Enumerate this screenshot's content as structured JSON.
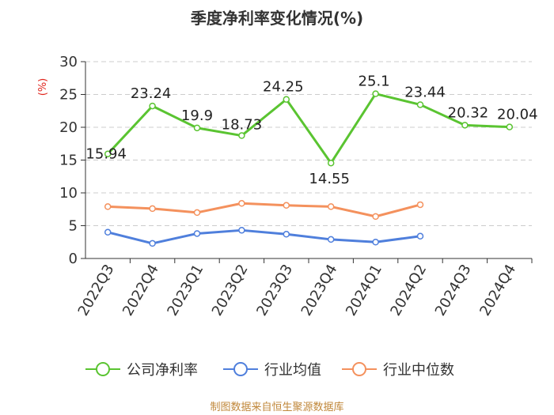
{
  "chart_data": {
    "type": "line",
    "title": "季度净利率变化情况(%)",
    "ylabel": "(%)",
    "ylim": [
      0,
      30
    ],
    "yticks": [
      0,
      5,
      10,
      15,
      20,
      25,
      30
    ],
    "categories": [
      "2022Q3",
      "2022Q4",
      "2023Q1",
      "2023Q2",
      "2023Q3",
      "2023Q4",
      "2024Q1",
      "2024Q2",
      "2024Q3",
      "2024Q4"
    ],
    "grid": true,
    "legend_position": "bottom",
    "series": [
      {
        "name": "公司净利率",
        "color": "#5ac431",
        "values": [
          15.94,
          23.24,
          19.9,
          18.73,
          24.25,
          14.55,
          25.1,
          23.44,
          20.32,
          20.04
        ],
        "labels": [
          "15.94",
          "23.24",
          "19.9",
          "18.73",
          "24.25",
          "14.55",
          "25.1",
          "23.44",
          "20.32",
          "20.04"
        ],
        "show_labels": true
      },
      {
        "name": "行业均值",
        "color": "#4f7fdc",
        "values": [
          4.0,
          2.3,
          3.8,
          4.3,
          3.7,
          2.9,
          2.5,
          3.4,
          null,
          null
        ],
        "show_labels": false
      },
      {
        "name": "行业中位数",
        "color": "#f4915d",
        "values": [
          7.9,
          7.6,
          7.0,
          8.4,
          8.1,
          7.9,
          6.4,
          8.2,
          null,
          null
        ],
        "show_labels": false
      }
    ]
  },
  "source": "制图数据来自恒生聚源数据库"
}
